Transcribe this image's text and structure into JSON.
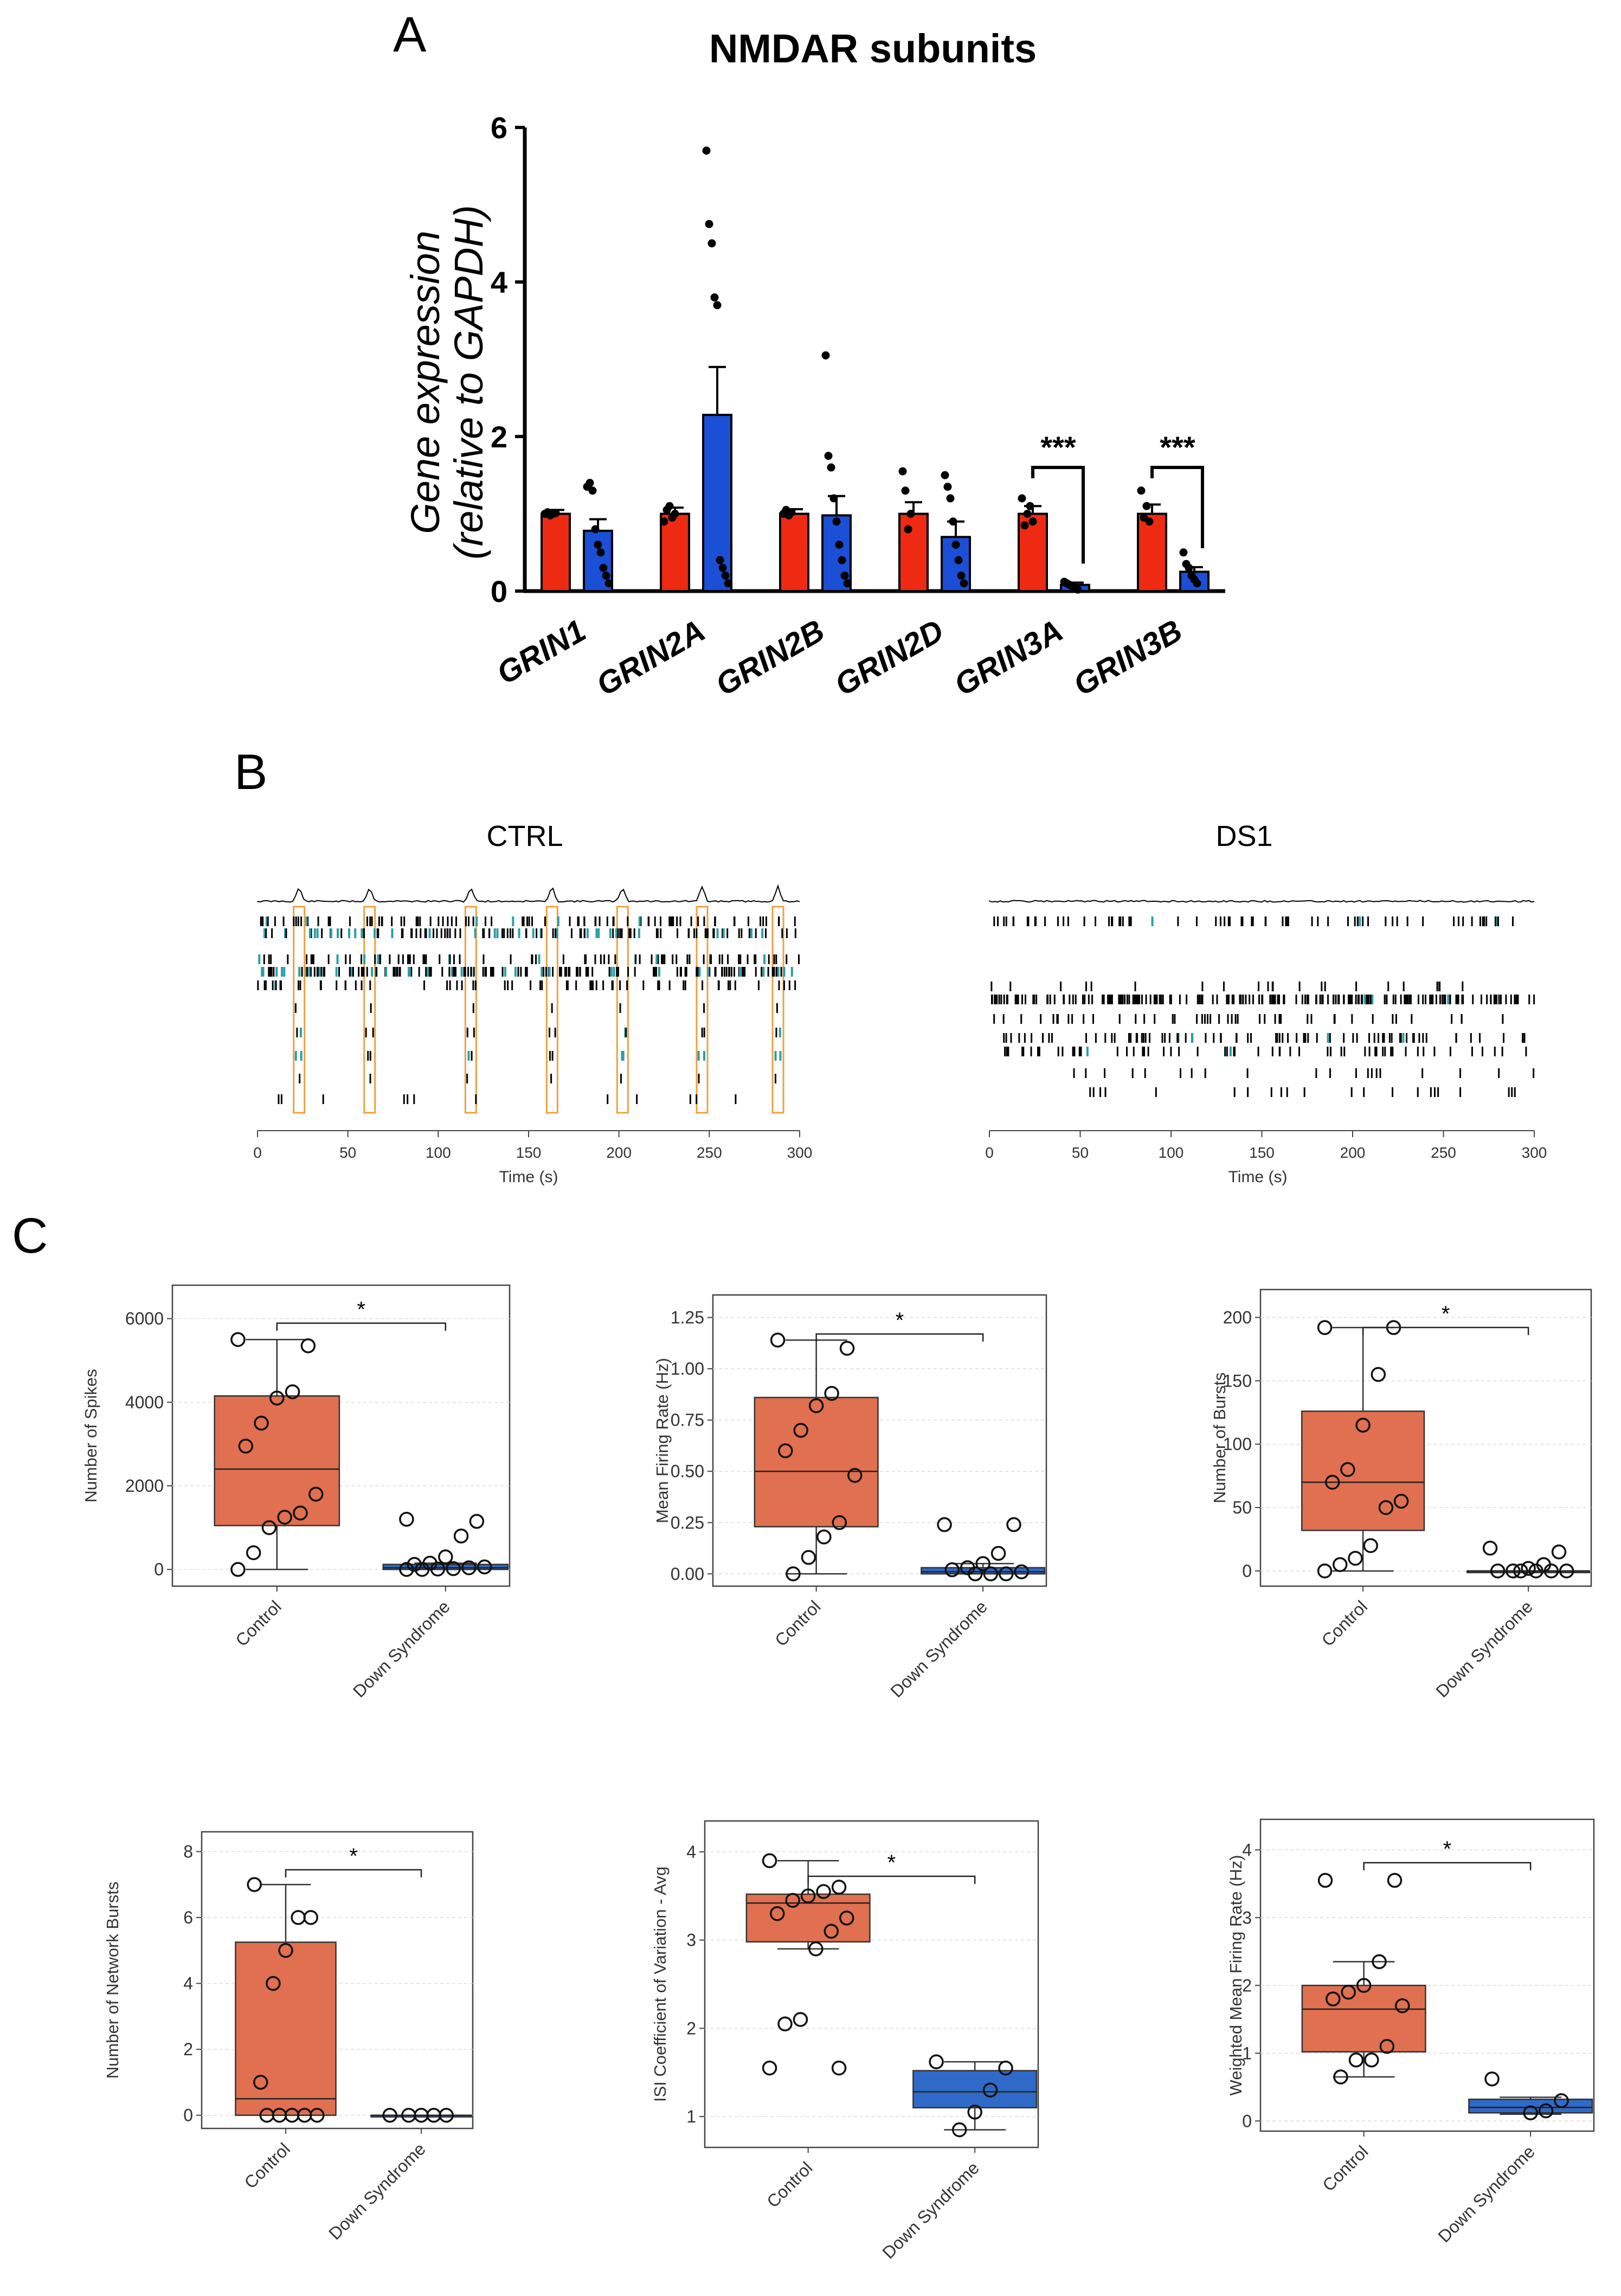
{
  "figure": {
    "panel_a_letter": "A",
    "panel_b_letter": "B",
    "panel_c_letter": "C"
  },
  "colors": {
    "control_bar": "#ee2a12",
    "ds_bar": "#1a4fd6",
    "control_box": "#e07050",
    "ds_box": "#2f6ac8",
    "burst": "#f0a040",
    "teal": "#2aa0a8"
  },
  "chart_data": [
    {
      "id": "panelA",
      "type": "bar",
      "title": "NMDAR subunits",
      "ylabel_line1": "Gene expression",
      "ylabel_line2": "(relative to GAPDH)",
      "ylim": [
        0,
        6
      ],
      "yticks": [
        0,
        2,
        4,
        6
      ],
      "categories": [
        "GRIN1",
        "GRIN2A",
        "GRIN2B",
        "GRIN2D",
        "GRIN3A",
        "GRIN3B"
      ],
      "series": [
        {
          "name": "Control",
          "values": [
            1.0,
            1.0,
            1.0,
            1.0,
            1.0,
            1.0
          ],
          "errors": [
            0.05,
            0.08,
            0.06,
            0.15,
            0.1,
            0.12
          ],
          "points": [
            [
              1.0,
              1.02,
              0.98,
              1.0,
              1.01
            ],
            [
              0.9,
              1.05,
              1.1,
              0.95,
              1.0
            ],
            [
              1.0,
              1.05,
              0.98,
              1.02
            ],
            [
              1.55,
              1.3,
              0.8,
              1.0
            ],
            [
              1.2,
              0.85,
              1.0,
              1.1,
              0.9
            ],
            [
              1.3,
              0.95,
              1.1,
              0.9
            ]
          ]
        },
        {
          "name": "Down Syndrome",
          "values": [
            0.78,
            2.28,
            0.98,
            0.7,
            0.08,
            0.25
          ],
          "errors": [
            0.15,
            0.62,
            0.25,
            0.2,
            0.03,
            0.06
          ],
          "points": [
            [
              1.35,
              1.4,
              1.3,
              0.8,
              0.6,
              0.5,
              0.3,
              0.2,
              0.1
            ],
            [
              5.7,
              4.75,
              4.5,
              3.8,
              3.7,
              0.4,
              0.3,
              0.2,
              0.1
            ],
            [
              3.05,
              1.75,
              1.6,
              1.2,
              0.9,
              0.6,
              0.4,
              0.2,
              0.1
            ],
            [
              1.5,
              1.35,
              1.2,
              0.9,
              0.6,
              0.4,
              0.2,
              0.1
            ],
            [
              0.12,
              0.1,
              0.08,
              0.06,
              0.04,
              0.02
            ],
            [
              0.5,
              0.35,
              0.3,
              0.2,
              0.15,
              0.1
            ]
          ]
        }
      ],
      "significance": [
        {
          "category": "GRIN3A",
          "label": "***"
        },
        {
          "category": "GRIN3B",
          "label": "***"
        }
      ]
    },
    {
      "id": "raster-ctrl",
      "type": "scatter",
      "title": "CTRL",
      "xlabel": "Time (s)",
      "xlim": [
        0,
        300
      ],
      "xticks": [
        0,
        50,
        100,
        150,
        200,
        250,
        300
      ],
      "network_bursts_s": [
        23,
        62,
        118,
        163,
        202,
        246,
        288
      ]
    },
    {
      "id": "raster-ds1",
      "type": "scatter",
      "title": "DS1",
      "xlabel": "Time (s)",
      "xlim": [
        0,
        300
      ],
      "xticks": [
        0,
        50,
        100,
        150,
        200,
        250,
        300
      ]
    },
    {
      "id": "box-spikes",
      "type": "box",
      "ylabel": "Number of Spikes",
      "categories": [
        "Control",
        "Down Syndrome"
      ],
      "ylim": [
        -400,
        6800
      ],
      "yticks": [
        "0",
        "2000",
        "4000",
        "6000"
      ],
      "ytick_values": [
        0,
        2000,
        4000,
        6000
      ],
      "significance": "*",
      "boxes": [
        {
          "q1": 1050,
          "median": 2400,
          "q3": 4150,
          "whisker_low": 0,
          "whisker_high": 5500
        },
        {
          "q1": 0,
          "median": 40,
          "q3": 120,
          "whisker_low": 0,
          "whisker_high": 150
        }
      ],
      "points": [
        [
          5500,
          5350,
          4250,
          4100,
          3500,
          2950,
          1800,
          1350,
          1250,
          1000,
          400,
          0
        ],
        [
          1200,
          1150,
          800,
          300,
          150,
          120,
          60,
          40,
          20,
          10,
          0,
          0
        ]
      ]
    },
    {
      "id": "box-mfr",
      "type": "box",
      "ylabel": "Mean Firing Rate (Hz)",
      "categories": [
        "Control",
        "Down Syndrome"
      ],
      "ylim": [
        -0.06,
        1.36
      ],
      "yticks": [
        "0.00",
        "0.25",
        "0.50",
        "0.75",
        "1.00",
        "1.25"
      ],
      "ytick_values": [
        0,
        0.25,
        0.5,
        0.75,
        1.0,
        1.25
      ],
      "significance": "*",
      "boxes": [
        {
          "q1": 0.23,
          "median": 0.5,
          "q3": 0.86,
          "whisker_low": 0,
          "whisker_high": 1.14
        },
        {
          "q1": 0.0,
          "median": 0.01,
          "q3": 0.03,
          "whisker_low": 0,
          "whisker_high": 0.05
        }
      ],
      "points": [
        [
          1.14,
          1.1,
          0.88,
          0.82,
          0.7,
          0.6,
          0.48,
          0.25,
          0.18,
          0.08,
          0.0
        ],
        [
          0.24,
          0.24,
          0.1,
          0.05,
          0.03,
          0.02,
          0.01,
          0.0,
          0.0,
          0.0
        ]
      ]
    },
    {
      "id": "box-bursts",
      "type": "box",
      "ylabel": "Number of Bursts",
      "categories": [
        "Control",
        "Down Syndrome"
      ],
      "ylim": [
        -12,
        222
      ],
      "yticks": [
        "0",
        "50",
        "100",
        "150",
        "200"
      ],
      "ytick_values": [
        0,
        50,
        100,
        150,
        200
      ],
      "significance": "*",
      "boxes": [
        {
          "q1": 32,
          "median": 70,
          "q3": 126,
          "whisker_low": 0,
          "whisker_high": 192
        },
        {
          "q1": 0,
          "median": 0,
          "q3": 0,
          "whisker_low": 0,
          "whisker_high": 0
        }
      ],
      "points": [
        [
          192,
          192,
          155,
          115,
          80,
          70,
          55,
          50,
          20,
          10,
          5,
          0
        ],
        [
          18,
          15,
          5,
          2,
          0,
          0,
          0,
          0,
          0,
          0
        ]
      ]
    },
    {
      "id": "box-netbursts",
      "type": "box",
      "ylabel": "Number of Network Bursts",
      "categories": [
        "Control",
        "Down Syndrome"
      ],
      "ylim": [
        -0.4,
        8.6
      ],
      "yticks": [
        "0",
        "2",
        "4",
        "6",
        "8"
      ],
      "ytick_values": [
        0,
        2,
        4,
        6,
        8
      ],
      "significance": "*",
      "boxes": [
        {
          "q1": 0,
          "median": 0.5,
          "q3": 5.25,
          "whisker_low": 0,
          "whisker_high": 7
        },
        {
          "q1": 0,
          "median": 0,
          "q3": 0,
          "whisker_low": 0,
          "whisker_high": 0
        }
      ],
      "points": [
        [
          7,
          6,
          6,
          5,
          4,
          1,
          0,
          0,
          0,
          0,
          0
        ],
        [
          0,
          0,
          0,
          0,
          0
        ]
      ]
    },
    {
      "id": "box-isi",
      "type": "box",
      "ylabel": "ISI Coefficient of Variation - Avg",
      "categories": [
        "Control",
        "Down Syndrome"
      ],
      "ylim": [
        0.65,
        4.35
      ],
      "yticks": [
        "1",
        "2",
        "3",
        "4"
      ],
      "ytick_values": [
        1,
        2,
        3,
        4
      ],
      "significance": "*",
      "boxes": [
        {
          "q1": 2.98,
          "median": 3.42,
          "q3": 3.52,
          "whisker_low": 2.9,
          "whisker_high": 3.9
        },
        {
          "q1": 1.1,
          "median": 1.28,
          "q3": 1.52,
          "whisker_low": 0.85,
          "whisker_high": 1.62
        }
      ],
      "points": [
        [
          3.9,
          3.6,
          3.55,
          3.5,
          3.45,
          3.3,
          3.25,
          3.1,
          2.9,
          2.1,
          2.05,
          1.55,
          1.55
        ],
        [
          1.62,
          1.55,
          1.3,
          1.05,
          0.85
        ]
      ]
    },
    {
      "id": "box-wmfr",
      "type": "box",
      "ylabel": "Weighted Mean Firing Rate (Hz)",
      "categories": [
        "Control",
        "Down Syndrome"
      ],
      "ylim": [
        -0.15,
        4.45
      ],
      "yticks": [
        "0",
        "1",
        "2",
        "3",
        "4"
      ],
      "ytick_values": [
        0,
        1,
        2,
        3,
        4
      ],
      "significance": "*",
      "boxes": [
        {
          "q1": 1.02,
          "median": 1.65,
          "q3": 2.0,
          "whisker_low": 0.65,
          "whisker_high": 2.35
        },
        {
          "q1": 0.12,
          "median": 0.2,
          "q3": 0.32,
          "whisker_low": 0.1,
          "whisker_high": 0.35
        }
      ],
      "points": [
        [
          3.55,
          3.55,
          2.35,
          2.0,
          1.9,
          1.8,
          1.7,
          1.1,
          0.9,
          0.9,
          0.65
        ],
        [
          0.62,
          0.3,
          0.15,
          0.12
        ]
      ]
    }
  ]
}
